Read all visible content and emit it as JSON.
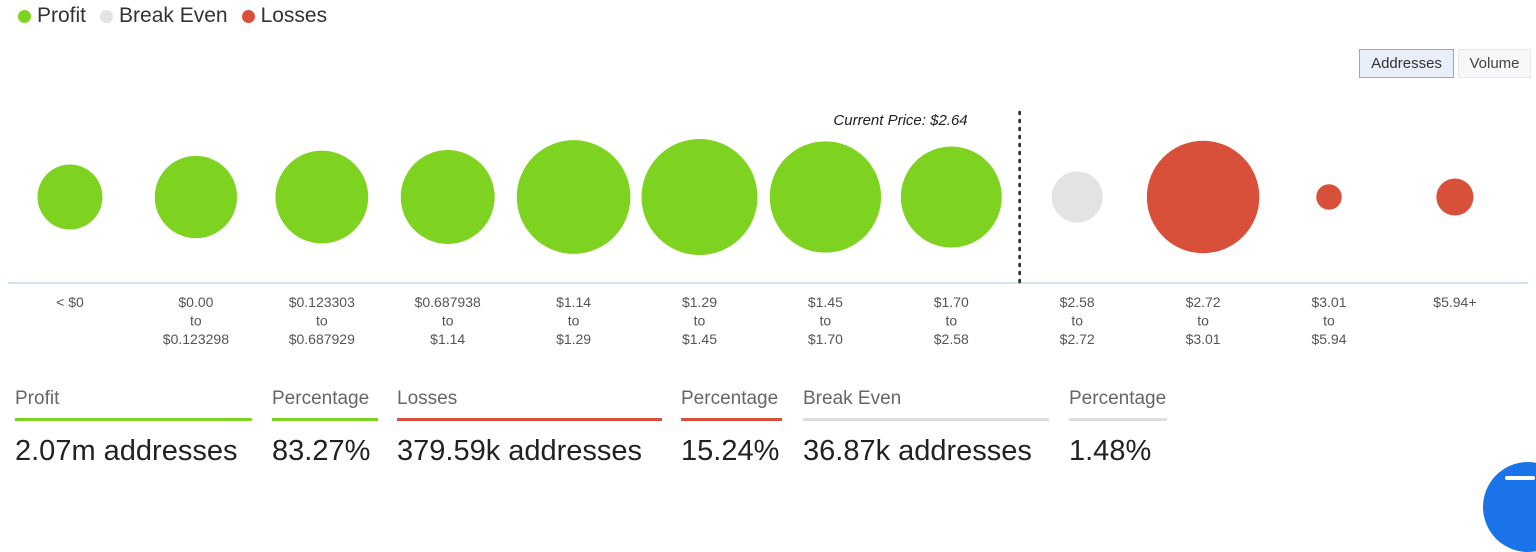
{
  "legend": [
    {
      "label": "Profit",
      "color": "#7ed321"
    },
    {
      "label": "Break Even",
      "color": "#e3e3e3"
    },
    {
      "label": "Losses",
      "color": "#d9503a"
    }
  ],
  "toggle": {
    "addresses_label": "Addresses",
    "volume_label": "Volume",
    "selected": "Addresses"
  },
  "current_price_label": "Current Price: $2.64",
  "colors": {
    "profit": "#7ed321",
    "break_even": "#e3e3e3",
    "losses": "#d9503a",
    "axis": "#c9dbe8",
    "price_line": "#222222"
  },
  "chart_data": {
    "type": "scatter",
    "encoding": "bubble size = relative number of addresses per price range",
    "categories": [
      [
        "< $0"
      ],
      [
        "$0.00",
        "to",
        "$0.123298"
      ],
      [
        "$0.123303",
        "to",
        "$0.687929"
      ],
      [
        "$0.687938",
        "to",
        "$1.14"
      ],
      [
        "$1.14",
        "to",
        "$1.29"
      ],
      [
        "$1.29",
        "to",
        "$1.45"
      ],
      [
        "$1.45",
        "to",
        "$1.70"
      ],
      [
        "$1.70",
        "to",
        "$2.58"
      ],
      [
        "$2.58",
        "to",
        "$2.72"
      ],
      [
        "$2.72",
        "to",
        "$3.01"
      ],
      [
        "$3.01",
        "to",
        "$5.94"
      ],
      [
        "$5.94+"
      ]
    ],
    "groups": [
      "Profit",
      "Profit",
      "Profit",
      "Profit",
      "Profit",
      "Profit",
      "Profit",
      "Profit",
      "Break Even",
      "Losses",
      "Losses",
      "Losses"
    ],
    "relative_size": [
      0.56,
      0.71,
      0.8,
      0.81,
      0.98,
      1.0,
      0.96,
      0.87,
      0.44,
      0.97,
      0.22,
      0.32
    ],
    "current_price": 2.64,
    "grid": false,
    "legend_position": "top-left"
  },
  "stats": [
    {
      "label": "Profit",
      "value": "2.07m addresses",
      "color": "#7ed321"
    },
    {
      "label": "Percentage",
      "value": "83.27%",
      "color": "#7ed321"
    },
    {
      "label": "Losses",
      "value": "379.59k addresses",
      "color": "#d9503a"
    },
    {
      "label": "Percentage",
      "value": "15.24%",
      "color": "#d9503a"
    },
    {
      "label": "Break Even",
      "value": "36.87k addresses",
      "color": "#dddddd"
    },
    {
      "label": "Percentage",
      "value": "1.48%",
      "color": "#dddddd"
    }
  ]
}
